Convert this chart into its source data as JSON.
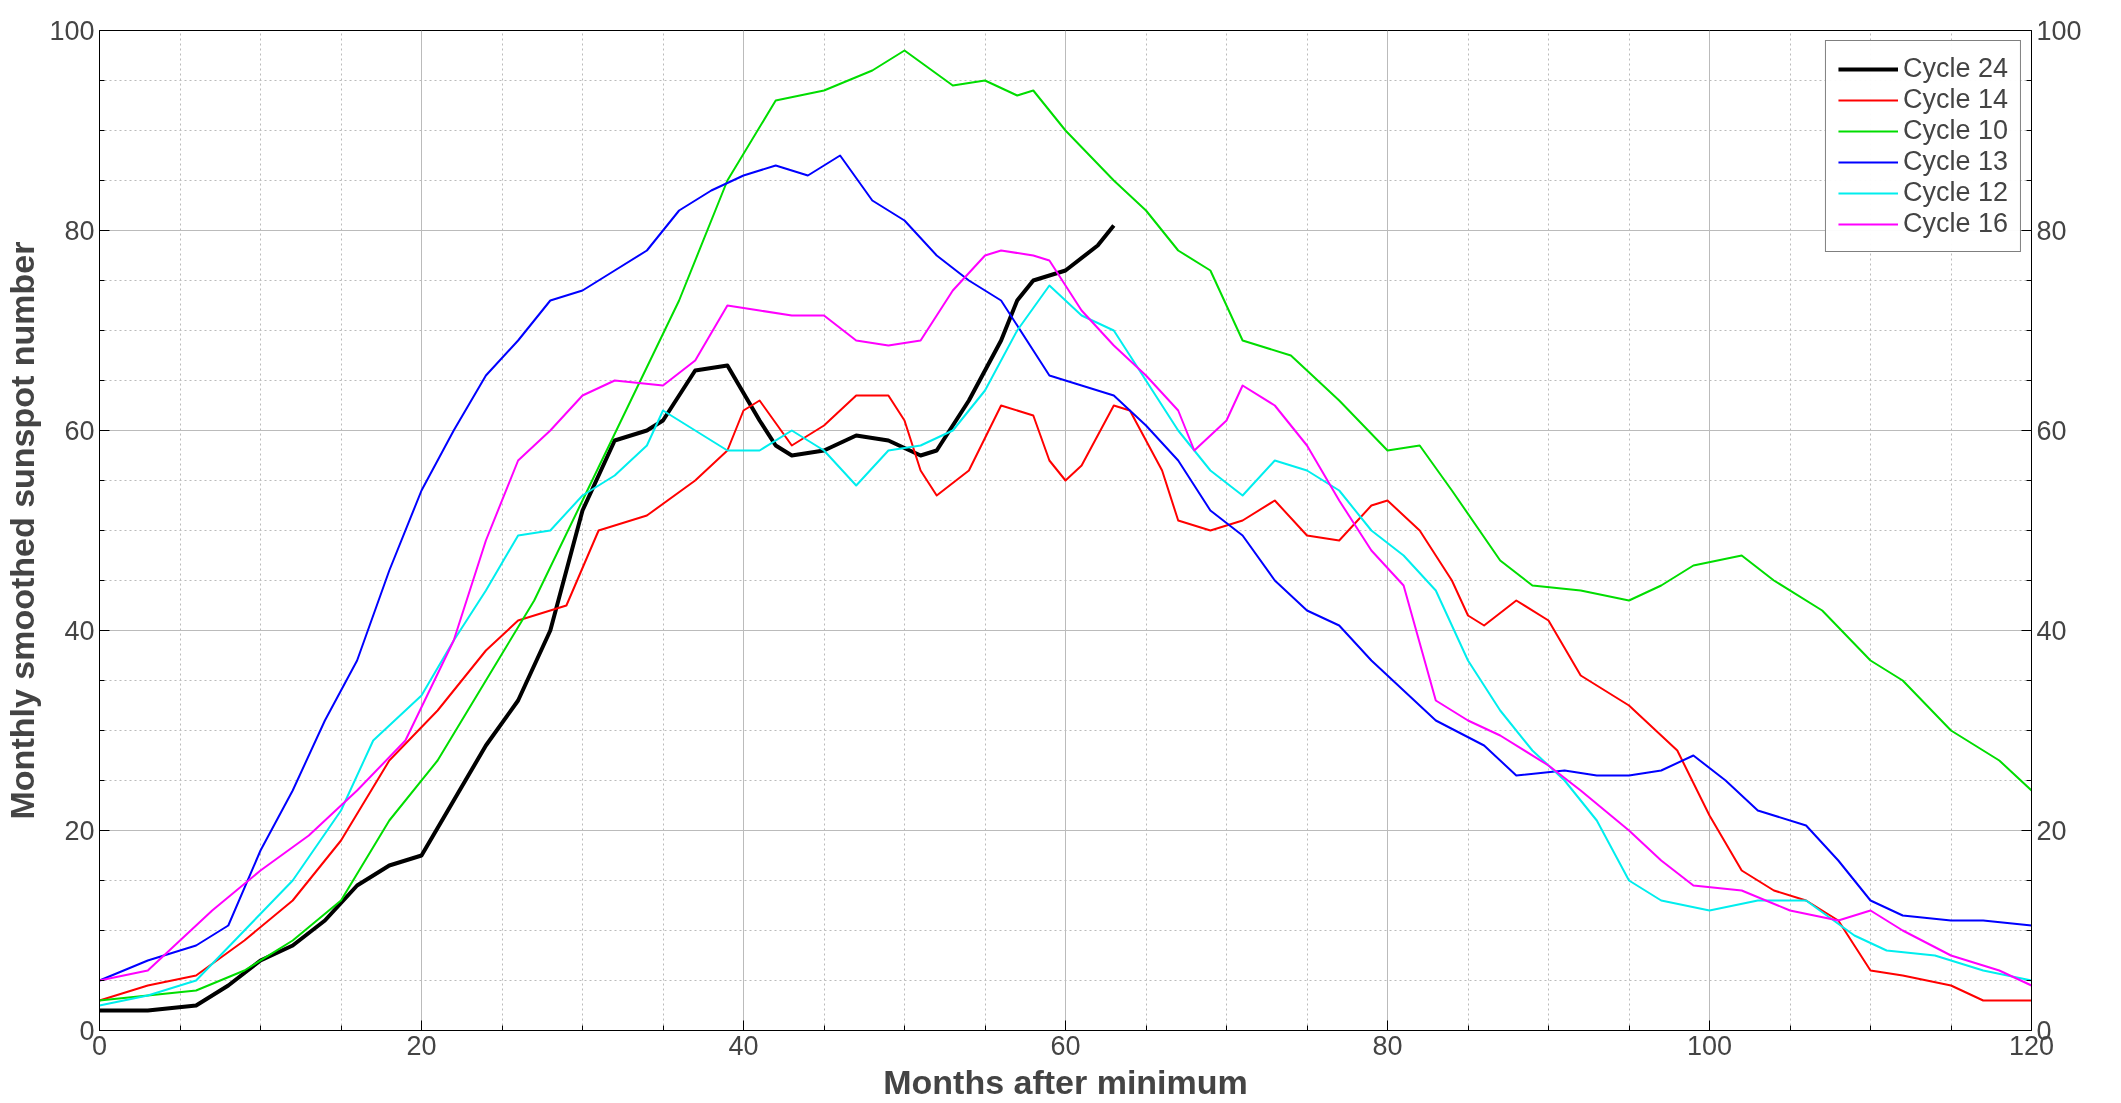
{
  "chart_data": {
    "type": "line",
    "xlabel": "Months after minimum",
    "ylabel": "Monthly smoothed sunspot number",
    "xlim": [
      0,
      120
    ],
    "xticks": [
      0,
      20,
      40,
      60,
      80,
      100,
      120
    ],
    "ylim": [
      0,
      100
    ],
    "yticks": [
      0,
      20,
      40,
      60,
      80,
      100
    ],
    "y2lim": [
      0,
      100
    ],
    "y2ticks": [
      0,
      20,
      40,
      60,
      80,
      100
    ],
    "grid": true,
    "legend": "top right",
    "line_style": "solid",
    "marker": "none",
    "series": [
      {
        "name": "Cycle 24",
        "color": "#000000",
        "x": [
          0,
          3,
          6,
          8,
          10,
          12,
          14,
          16,
          18,
          20,
          22,
          24,
          26,
          28,
          30,
          32,
          34,
          35,
          37,
          39,
          41,
          42,
          43,
          45,
          47,
          49,
          51,
          52,
          54,
          56,
          57,
          58,
          60,
          62,
          63
        ],
        "values": [
          2,
          2,
          2.5,
          4.5,
          7,
          8.5,
          11,
          14.5,
          16.5,
          17.5,
          23,
          28.5,
          33,
          40,
          52,
          59,
          60,
          61,
          66,
          66.5,
          61,
          58.5,
          57.5,
          58,
          59.5,
          59,
          57.5,
          58,
          63,
          69,
          73,
          75,
          76,
          78.5,
          80.5
        ]
      },
      {
        "name": "Cycle 14",
        "color": "#ff0000",
        "x": [
          0,
          3,
          6,
          9,
          12,
          15,
          18,
          21,
          24,
          26,
          29,
          31,
          34,
          37,
          39,
          40,
          41,
          43,
          45,
          47,
          49,
          50,
          51,
          52,
          54,
          56,
          58,
          59,
          60,
          61,
          63,
          64,
          66,
          67,
          69,
          71,
          73,
          75,
          77,
          79,
          80,
          82,
          84,
          85,
          86,
          88,
          90,
          92,
          95,
          98,
          100,
          102,
          104,
          106,
          108,
          110,
          112,
          115,
          117,
          120
        ],
        "values": [
          3,
          4.5,
          5.5,
          9,
          13,
          19,
          27,
          32,
          38,
          41,
          42.5,
          50,
          51.5,
          55,
          58,
          62,
          63,
          58.5,
          60.5,
          63.5,
          63.5,
          61,
          56,
          53.5,
          56,
          62.5,
          61.5,
          57,
          55,
          56.5,
          62.5,
          62,
          56,
          51,
          50,
          51,
          53,
          49.5,
          49,
          52.5,
          53,
          50,
          45,
          41.5,
          40.5,
          43,
          41,
          35.5,
          32.5,
          28,
          21.5,
          16,
          14,
          13,
          11,
          6,
          5.5,
          4.5,
          3,
          3
        ]
      },
      {
        "name": "Cycle 10",
        "color": "#00dd00",
        "x": [
          0,
          3,
          6,
          9,
          12,
          15,
          18,
          21,
          24,
          27,
          30,
          33,
          36,
          39,
          42,
          45,
          48,
          50,
          53,
          55,
          57,
          58,
          60,
          63,
          65,
          67,
          69,
          71,
          74,
          77,
          80,
          82,
          84,
          87,
          89,
          92,
          95,
          97,
          99,
          102,
          104,
          107,
          110,
          112,
          115,
          118,
          120
        ],
        "values": [
          3,
          3.5,
          4,
          6,
          9,
          13,
          21,
          27,
          35,
          43,
          53,
          63,
          73,
          85,
          93,
          94,
          96,
          98,
          94.5,
          95,
          93.5,
          94,
          90,
          85,
          82,
          78,
          76,
          69,
          67.5,
          63,
          58,
          58.5,
          54,
          47,
          44.5,
          44,
          43,
          44.5,
          46.5,
          47.5,
          45,
          42,
          37,
          35,
          30,
          27,
          24
        ]
      },
      {
        "name": "Cycle 13",
        "color": "#0000ff",
        "x": [
          0,
          3,
          6,
          8,
          10,
          12,
          14,
          16,
          18,
          20,
          22,
          24,
          26,
          28,
          30,
          32,
          34,
          36,
          38,
          40,
          42,
          44,
          46,
          48,
          50,
          52,
          54,
          56,
          58,
          59,
          61,
          63,
          65,
          67,
          69,
          71,
          73,
          75,
          77,
          79,
          81,
          83,
          86,
          88,
          91,
          93,
          95,
          97,
          99,
          101,
          103,
          106,
          108,
          110,
          112,
          115,
          117,
          120
        ],
        "values": [
          5,
          7,
          8.5,
          10.5,
          18,
          24,
          31,
          37,
          46,
          54,
          60,
          65.5,
          69,
          73,
          74,
          76,
          78,
          82,
          84,
          85.5,
          86.5,
          85.5,
          87.5,
          83,
          81,
          77.5,
          75,
          73,
          68,
          65.5,
          64.5,
          63.5,
          60.5,
          57,
          52,
          49.5,
          45,
          42,
          40.5,
          37,
          34,
          31,
          28.5,
          25.5,
          26,
          25.5,
          25.5,
          26,
          27.5,
          25,
          22,
          20.5,
          17,
          13,
          11.5,
          11,
          11,
          10.5
        ]
      },
      {
        "name": "Cycle 12",
        "color": "#00eeee",
        "x": [
          0,
          3,
          6,
          9,
          12,
          15,
          17,
          20,
          22,
          24,
          26,
          28,
          30,
          32,
          34,
          35,
          37,
          39,
          41,
          43,
          45,
          47,
          49,
          51,
          53,
          55,
          57,
          59,
          61,
          63,
          65,
          67,
          69,
          71,
          73,
          75,
          77,
          79,
          81,
          83,
          85,
          87,
          89,
          91,
          93,
          95,
          97,
          100,
          103,
          106,
          109,
          111,
          114,
          117,
          120
        ],
        "values": [
          2.5,
          3.5,
          5,
          10,
          15,
          22,
          29,
          33.5,
          39,
          44,
          49.5,
          50,
          53.5,
          55.5,
          58.5,
          62,
          60,
          58,
          58,
          60,
          58,
          54.5,
          58,
          58.5,
          60,
          64,
          70,
          74.5,
          71.5,
          70,
          65,
          60,
          56,
          53.5,
          57,
          56,
          54,
          50,
          47.5,
          44,
          37,
          32,
          28,
          25,
          21,
          15,
          13,
          12,
          13,
          13,
          9.5,
          8,
          7.5,
          6,
          5
        ]
      },
      {
        "name": "Cycle 16",
        "color": "#ff00ff",
        "x": [
          0,
          3,
          5,
          7,
          10,
          13,
          16,
          19,
          22,
          24,
          26,
          28,
          30,
          32,
          35,
          37,
          39,
          41,
          43,
          45,
          47,
          49,
          51,
          53,
          55,
          56,
          58,
          59,
          61,
          63,
          65,
          67,
          68,
          70,
          71,
          73,
          75,
          77,
          79,
          81,
          83,
          85,
          87,
          90,
          92,
          95,
          97,
          99,
          102,
          105,
          108,
          110,
          112,
          115,
          118,
          120
        ],
        "values": [
          5,
          6,
          9,
          12,
          16,
          19.5,
          24,
          29,
          39,
          49,
          57,
          60,
          63.5,
          65,
          64.5,
          67,
          72.5,
          72,
          71.5,
          71.5,
          69,
          68.5,
          69,
          74,
          77.5,
          78,
          77.5,
          77,
          72,
          68.5,
          65.5,
          62,
          58,
          61,
          64.5,
          62.5,
          58.5,
          53,
          48,
          44.5,
          33,
          31,
          29.5,
          26.5,
          24,
          20,
          17,
          14.5,
          14,
          12,
          11,
          12,
          10,
          7.5,
          6,
          4.5
        ]
      }
    ]
  }
}
